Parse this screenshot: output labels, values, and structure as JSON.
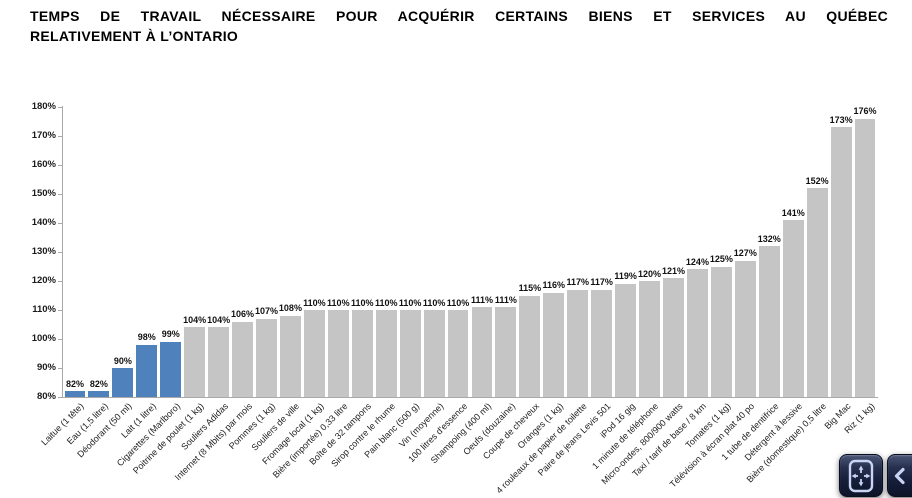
{
  "title": {
    "line1": "TEMPS DE TRAVAIL NÉCESSAIRE POUR ACQUÉRIR CERTAINS BIENS ET SERVICES AU QUÉBEC",
    "line2": "RELATIVEMENT À L’ONTARIO"
  },
  "chart_data": {
    "type": "bar",
    "title": "Temps de travail nécessaire pour acquérir certains biens et services au Québec relativement à l'Ontario",
    "xlabel": "",
    "ylabel": "",
    "ylim": [
      80,
      180
    ],
    "ytick_step": 10,
    "ytick_suffix": "%",
    "value_suffix": "%",
    "grid": false,
    "legend": "none",
    "highlight_first_n": 5,
    "colors": {
      "highlight": "#4f81bd",
      "default": "#c5c5c5",
      "axis": "#a9a9a9",
      "label": "#1a1a1a"
    },
    "categories": [
      "Laitue (1 tête)",
      "Eau (1,5 litre)",
      "Déodorant (50 ml)",
      "Lait (1 litre)",
      "Cigarettes (Marlboro)",
      "Poitrine de poulet (1 kg)",
      "Souliers Adidas",
      "Internet (8 Mbits) par mois",
      "Pommes (1 kg)",
      "Souliers de ville",
      "Fromage local (1 kg)",
      "Bière (importée) 0,33 litre",
      "Boîte de 32 tampons",
      "Sirop contre le rhume",
      "Pain blanc (500 g)",
      "Vin (moyenne)",
      "100 litres d'essence",
      "Shampoing (400 ml)",
      "Oeufs (douzaine)",
      "Coupe de cheveux",
      "Oranges (1 kg)",
      "4 rouleaux de papier de toilette",
      "Paire de jeans Levis 501",
      "iPod 16 gig",
      "1 minute de téléphone",
      "Micro-ondes, 800/900 watts",
      "Taxi / tarif de base / 8 km",
      "Tomates (1 kg)",
      "Télévision à écran plat 40 po",
      "1 tube de dentifrice",
      "Détergent à lessive",
      "Bière (domestique) 0,5 litre",
      "Big Mac",
      "Riz (1 kg)"
    ],
    "values": [
      82,
      82,
      90,
      98,
      99,
      104,
      104,
      106,
      107,
      108,
      110,
      110,
      110,
      110,
      110,
      110,
      110,
      111,
      111,
      115,
      116,
      117,
      117,
      119,
      120,
      121,
      124,
      125,
      127,
      132,
      141,
      152,
      173,
      176
    ]
  },
  "controls": {
    "pan_button_icon": "pan-arrows-icon",
    "prev_button_icon": "chevron-left-icon"
  }
}
